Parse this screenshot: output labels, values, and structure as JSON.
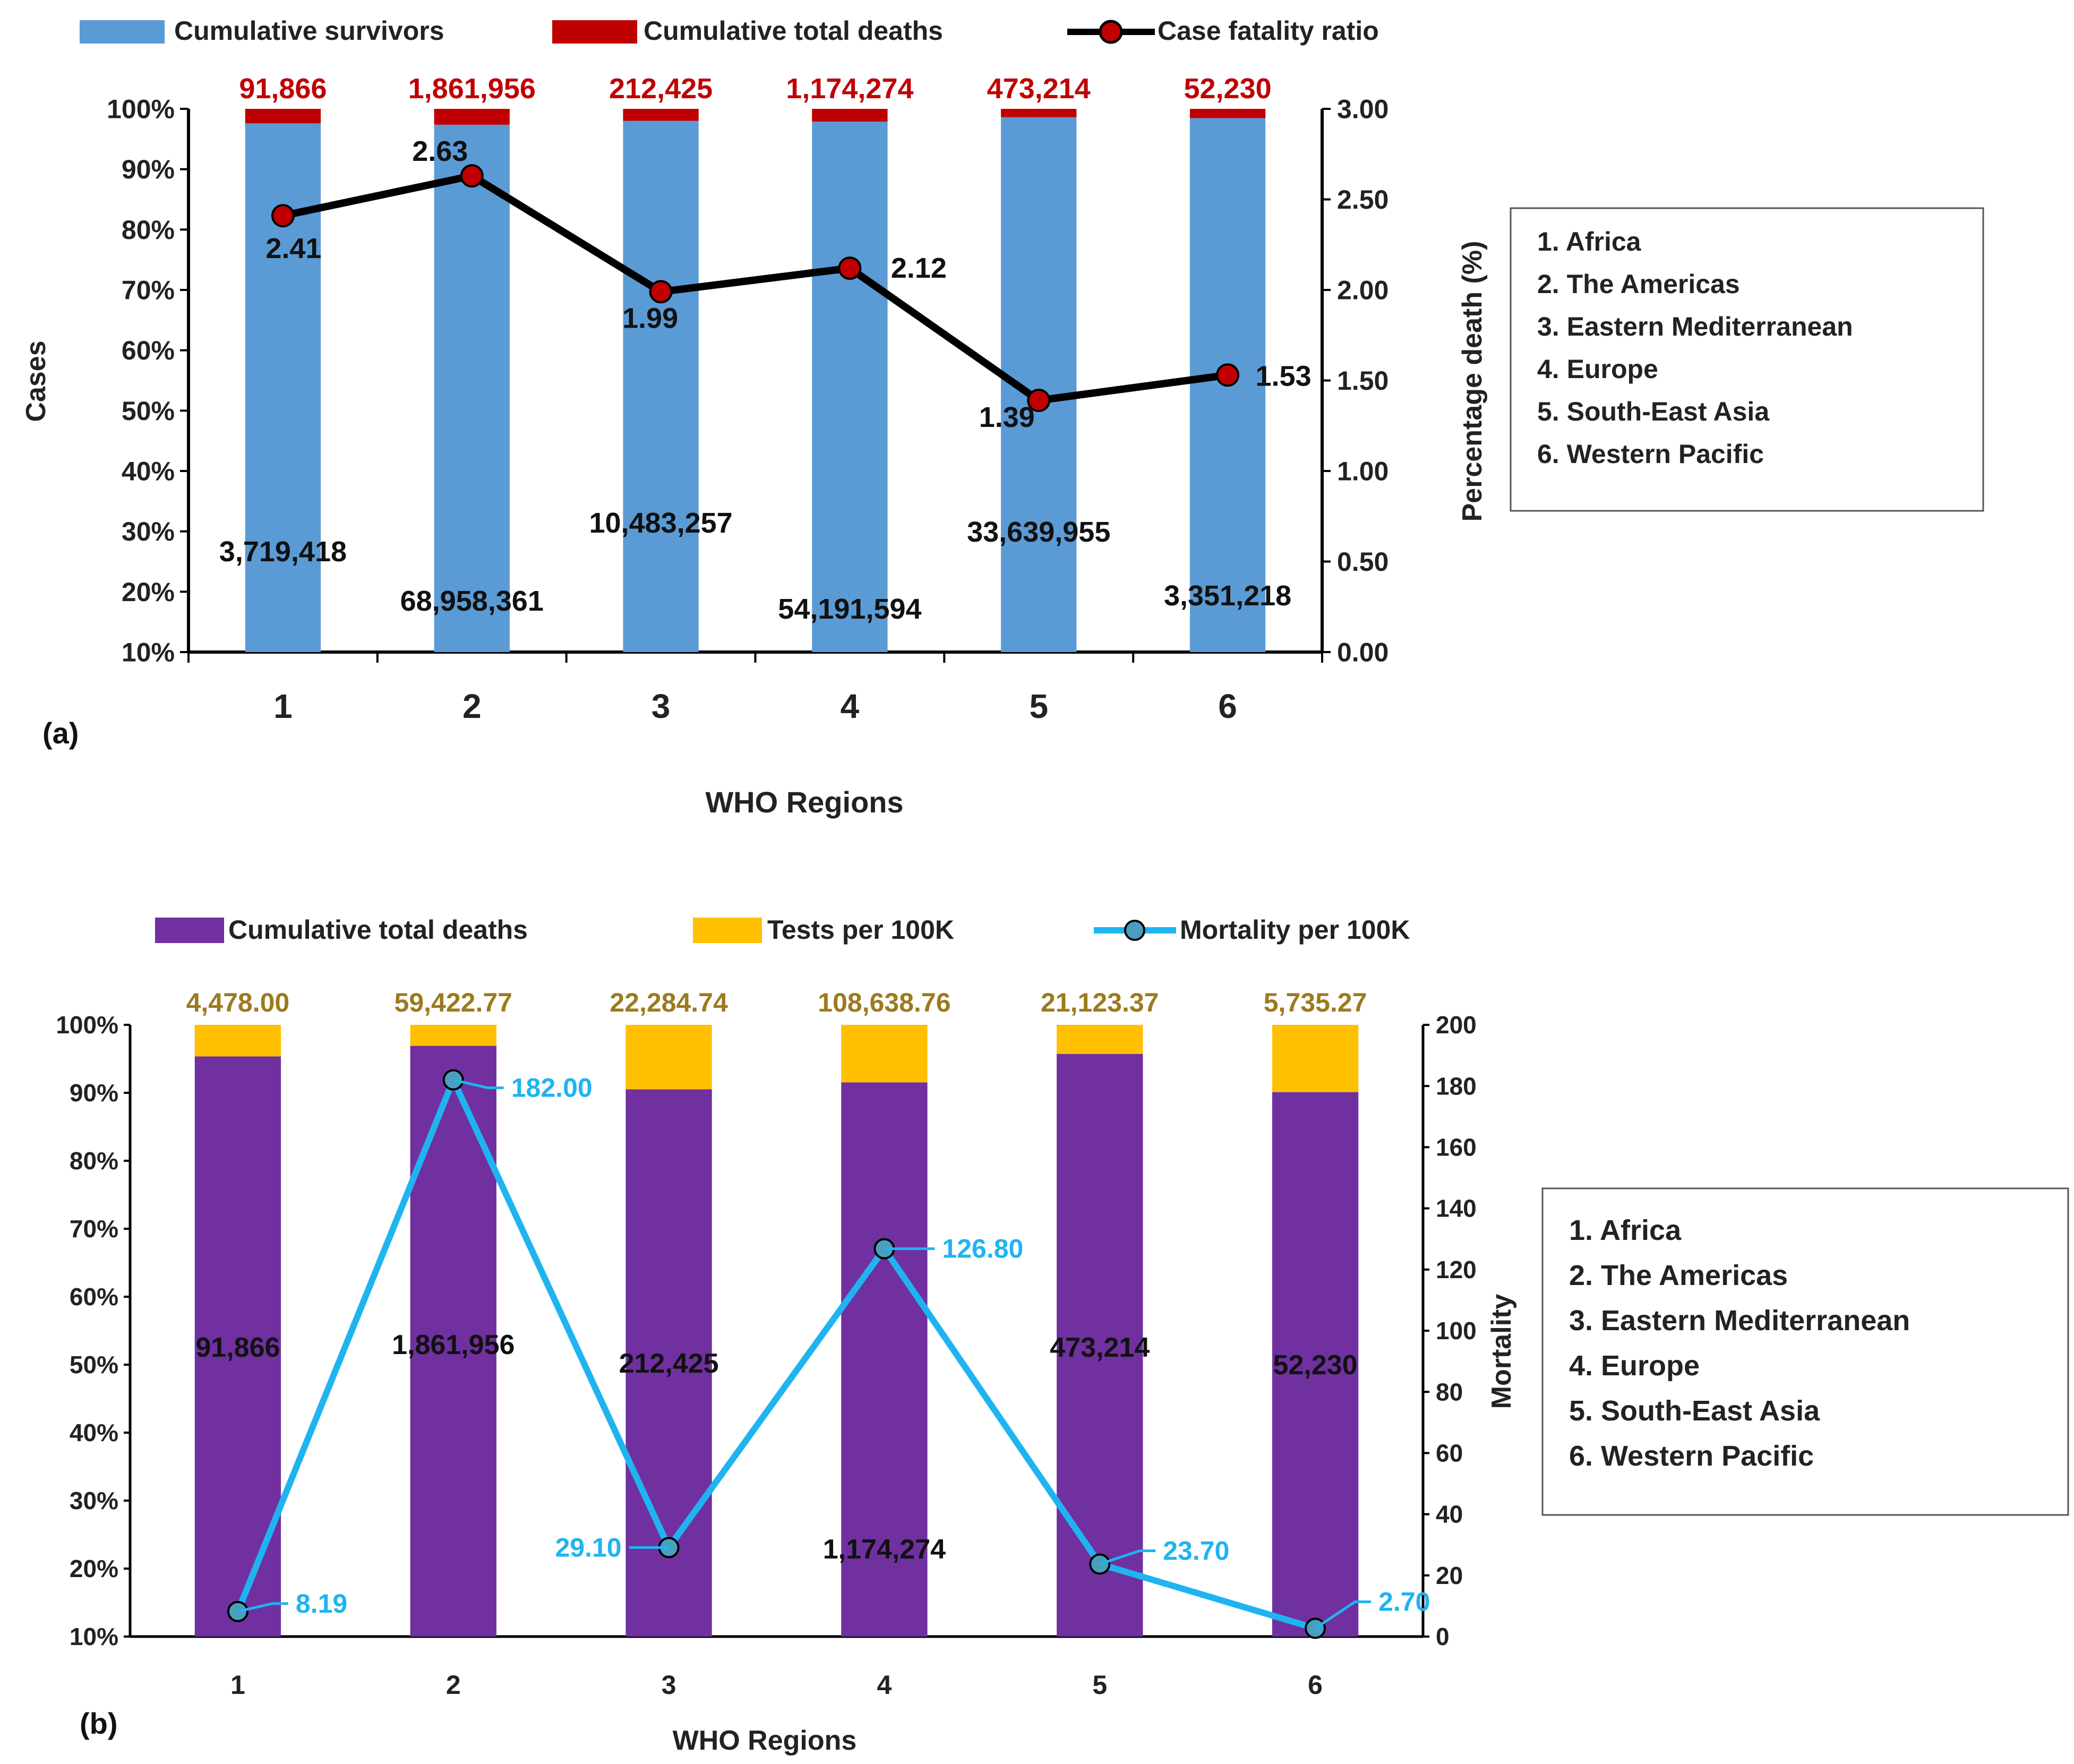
{
  "colors": {
    "survivors": "#5b9bd5",
    "deaths_a": "#c00000",
    "deaths_b": "#7030a0",
    "tests": "#ffc000",
    "cfr_line": "#000000",
    "cfr_marker": "#c00000",
    "mortality_line": "#1fb4f0",
    "mortality_label": "#1fb4f0",
    "deaths_label_a": "#c00000",
    "tests_label": "#9c7a1e"
  },
  "chart_data": [
    {
      "id": "a",
      "type": "bar",
      "panel_label": "(a)",
      "stacked": true,
      "percent_stacked": true,
      "categories": [
        "1",
        "2",
        "3",
        "4",
        "5",
        "6"
      ],
      "xlabel": "WHO Regions",
      "ylabel": "Cases",
      "y2label": "Percentage death (%)",
      "ylim": [
        10,
        100
      ],
      "y_ticks": [
        "10%",
        "20%",
        "30%",
        "40%",
        "50%",
        "60%",
        "70%",
        "80%",
        "90%",
        "100%"
      ],
      "y2lim": [
        0,
        3
      ],
      "y2_ticks": [
        "0.00",
        "0.50",
        "1.00",
        "1.50",
        "2.00",
        "2.50",
        "3.00"
      ],
      "legend": [
        "Cumulative survivors",
        "Cumulative total deaths",
        "Case fatality ratio"
      ],
      "series": [
        {
          "name": "Cumulative survivors",
          "values": [
            3719418,
            68958361,
            10483257,
            54191594,
            33639955,
            3351218
          ],
          "labels": [
            "3,719,418",
            "68,958,361",
            "10,483,257",
            "54,191,594",
            "33,639,955",
            "3,351,218"
          ]
        },
        {
          "name": "Cumulative total deaths",
          "values": [
            91866,
            1861956,
            212425,
            1174274,
            473214,
            52230
          ],
          "labels": [
            "91,866",
            "1,861,956",
            "212,425",
            "1,174,274",
            "473,214",
            "52,230"
          ]
        }
      ],
      "line": {
        "name": "Case fatality ratio",
        "axis": "secondary",
        "values": [
          2.41,
          2.63,
          1.99,
          2.12,
          1.39,
          1.53
        ],
        "labels": [
          "2.41",
          "2.63",
          "1.99",
          "2.12",
          "1.39",
          "1.53"
        ]
      },
      "region_legend": [
        "1.   Africa",
        "2.   The Americas",
        "3.   Eastern Mediterranean",
        "4.   Europe",
        "5.   South-East  Asia",
        "6.   Western Pacific"
      ]
    },
    {
      "id": "b",
      "type": "bar",
      "panel_label": "(b)",
      "stacked": true,
      "percent_stacked": true,
      "categories": [
        "1",
        "2",
        "3",
        "4",
        "5",
        "6"
      ],
      "xlabel": "WHO Regions",
      "ylabel": "",
      "y2label": "Mortality",
      "ylim": [
        10,
        100
      ],
      "y_ticks": [
        "10%",
        "20%",
        "30%",
        "40%",
        "50%",
        "60%",
        "70%",
        "80%",
        "90%",
        "100%"
      ],
      "y2lim": [
        0,
        200
      ],
      "y2_ticks": [
        "0",
        "20",
        "40",
        "60",
        "80",
        "100",
        "120",
        "140",
        "160",
        "180",
        "200"
      ],
      "legend": [
        "Cumulative total deaths",
        "Tests per 100K",
        "Mortality per 100K"
      ],
      "series": [
        {
          "name": "Cumulative total deaths",
          "values": [
            91866,
            1861956,
            212425,
            1174274,
            473214,
            52230
          ],
          "labels": [
            "91,866",
            "1,861,956",
            "212,425",
            "1,174,274",
            "473,214",
            "52,230"
          ]
        },
        {
          "name": "Tests per 100K",
          "values": [
            4478.0,
            59422.77,
            22284.74,
            108638.76,
            21123.37,
            5735.27
          ],
          "labels": [
            "4,478.00",
            "59,422.77",
            "22,284.74",
            "108,638.76",
            "21,123.37",
            "5,735.27"
          ]
        }
      ],
      "line": {
        "name": "Mortality per 100K",
        "axis": "secondary",
        "values": [
          8.19,
          182.0,
          29.1,
          126.8,
          23.7,
          2.7
        ],
        "labels": [
          "8.19",
          "182.00",
          "29.10",
          "126.80",
          "23.70",
          "2.70"
        ]
      },
      "region_legend": [
        "1.   Africa",
        "2.   The Americas",
        "3.   Eastern Mediterranean",
        "4.   Europe",
        "5.   South-East  Asia",
        "6.   Western Pacific"
      ]
    }
  ]
}
